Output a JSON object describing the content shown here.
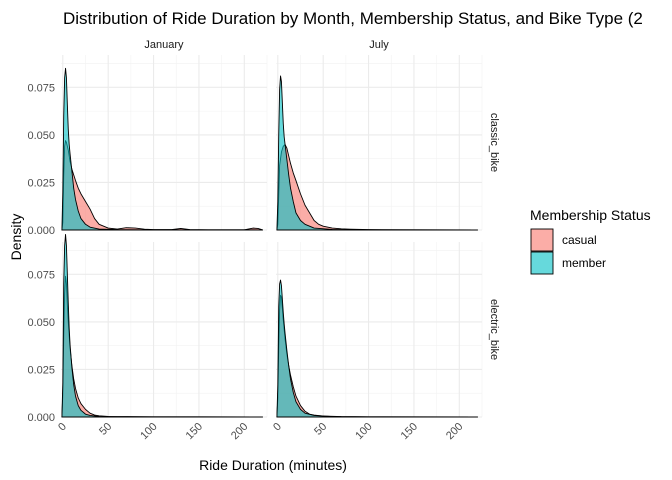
{
  "chart_data": {
    "type": "area",
    "subtype": "faceted density plot",
    "title": "Distribution of Ride Duration by Month, Membership Status, and Bike Type (2",
    "xlabel": "Ride Duration (minutes)",
    "ylabel": "Density",
    "xlim": [
      -2,
      225
    ],
    "ylim": [
      0,
      0.092
    ],
    "x_ticks": [
      0,
      50,
      100,
      150,
      200
    ],
    "y_ticks": [
      0,
      0.025,
      0.05,
      0.075
    ],
    "y_tick_labels": [
      "0.000",
      "0.025",
      "0.050",
      "0.075"
    ],
    "grid": true,
    "legend": {
      "title": "Membership Status",
      "position": "right",
      "entries": [
        {
          "name": "casual",
          "color": "#F8766D"
        },
        {
          "name": "member",
          "color": "#00BFC4"
        }
      ]
    },
    "facet_cols": [
      "January",
      "July"
    ],
    "facet_rows": [
      "classic_bike",
      "electric_bike"
    ],
    "fill_alpha": 0.6,
    "panels": [
      {
        "col": "January",
        "row": "classic_bike",
        "series": [
          {
            "name": "casual",
            "points": [
              [
                -1,
                0
              ],
              [
                0,
                0.004
              ],
              [
                1,
                0.028
              ],
              [
                2,
                0.044
              ],
              [
                3,
                0.047
              ],
              [
                4,
                0.046
              ],
              [
                6,
                0.042
              ],
              [
                8,
                0.036
              ],
              [
                10,
                0.032
              ],
              [
                12,
                0.029
              ],
              [
                14,
                0.026
              ],
              [
                17,
                0.022
              ],
              [
                20,
                0.019
              ],
              [
                25,
                0.015
              ],
              [
                30,
                0.011
              ],
              [
                35,
                0.006
              ],
              [
                40,
                0.003
              ],
              [
                45,
                0.002
              ],
              [
                50,
                0.001
              ],
              [
                60,
                0.0005
              ],
              [
                70,
                0.0012
              ],
              [
                80,
                0.001
              ],
              [
                90,
                0.0004
              ],
              [
                100,
                0.0002
              ],
              [
                120,
                0.0002
              ],
              [
                130,
                0.0008
              ],
              [
                140,
                0.0002
              ],
              [
                160,
                0.0001
              ],
              [
                200,
                0.0001
              ],
              [
                210,
                0.001
              ],
              [
                215,
                0.0008
              ],
              [
                220,
                0.0001
              ]
            ]
          },
          {
            "name": "member",
            "points": [
              [
                -1,
                0
              ],
              [
                0,
                0.02
              ],
              [
                1,
                0.06
              ],
              [
                2,
                0.08
              ],
              [
                3,
                0.085
              ],
              [
                4,
                0.08
              ],
              [
                5,
                0.066
              ],
              [
                6,
                0.053
              ],
              [
                7,
                0.045
              ],
              [
                8,
                0.04
              ],
              [
                10,
                0.031
              ],
              [
                12,
                0.022
              ],
              [
                14,
                0.016
              ],
              [
                17,
                0.01
              ],
              [
                20,
                0.006
              ],
              [
                25,
                0.003
              ],
              [
                30,
                0.0015
              ],
              [
                40,
                0.0005
              ],
              [
                60,
                0.0002
              ],
              [
                100,
                0.0001
              ],
              [
                150,
                0.0001
              ],
              [
                200,
                0.0001
              ],
              [
                220,
                5e-05
              ]
            ]
          }
        ]
      },
      {
        "col": "July",
        "row": "classic_bike",
        "series": [
          {
            "name": "casual",
            "points": [
              [
                -1,
                0
              ],
              [
                0,
                0.003
              ],
              [
                1,
                0.018
              ],
              [
                2,
                0.034
              ],
              [
                4,
                0.041
              ],
              [
                6,
                0.044
              ],
              [
                8,
                0.045
              ],
              [
                10,
                0.043
              ],
              [
                12,
                0.039
              ],
              [
                14,
                0.035
              ],
              [
                17,
                0.03
              ],
              [
                20,
                0.026
              ],
              [
                25,
                0.019
              ],
              [
                30,
                0.013
              ],
              [
                35,
                0.009
              ],
              [
                40,
                0.005
              ],
              [
                45,
                0.003
              ],
              [
                50,
                0.002
              ],
              [
                60,
                0.001
              ],
              [
                70,
                0.0006
              ],
              [
                80,
                0.0004
              ],
              [
                100,
                0.0002
              ],
              [
                150,
                0.0001
              ],
              [
                220,
                5e-05
              ]
            ]
          },
          {
            "name": "member",
            "points": [
              [
                -1,
                0
              ],
              [
                0,
                0.015
              ],
              [
                1,
                0.05
              ],
              [
                2,
                0.074
              ],
              [
                3,
                0.081
              ],
              [
                4,
                0.078
              ],
              [
                5,
                0.067
              ],
              [
                6,
                0.056
              ],
              [
                7,
                0.049
              ],
              [
                8,
                0.045
              ],
              [
                10,
                0.037
              ],
              [
                12,
                0.029
              ],
              [
                14,
                0.022
              ],
              [
                17,
                0.015
              ],
              [
                20,
                0.009
              ],
              [
                25,
                0.005
              ],
              [
                30,
                0.003
              ],
              [
                40,
                0.001
              ],
              [
                60,
                0.0003
              ],
              [
                100,
                0.0001
              ],
              [
                150,
                0.0001
              ],
              [
                220,
                5e-05
              ]
            ]
          }
        ]
      },
      {
        "col": "January",
        "row": "electric_bike",
        "series": [
          {
            "name": "casual",
            "points": [
              [
                -1,
                0
              ],
              [
                0,
                0.012
              ],
              [
                1,
                0.042
              ],
              [
                2,
                0.065
              ],
              [
                3,
                0.074
              ],
              [
                4,
                0.07
              ],
              [
                5,
                0.059
              ],
              [
                6,
                0.05
              ],
              [
                7,
                0.043
              ],
              [
                8,
                0.036
              ],
              [
                10,
                0.027
              ],
              [
                12,
                0.02
              ],
              [
                14,
                0.015
              ],
              [
                17,
                0.01
              ],
              [
                20,
                0.007
              ],
              [
                25,
                0.004
              ],
              [
                30,
                0.002
              ],
              [
                35,
                0.001
              ],
              [
                40,
                0.0006
              ],
              [
                50,
                0.0003
              ],
              [
                70,
                0.0002
              ],
              [
                100,
                0.0001
              ],
              [
                150,
                0.0001
              ],
              [
                220,
                5e-05
              ]
            ]
          },
          {
            "name": "member",
            "points": [
              [
                -1,
                0
              ],
              [
                0,
                0.018
              ],
              [
                1,
                0.07
              ],
              [
                2,
                0.09
              ],
              [
                3,
                0.096
              ],
              [
                4,
                0.09
              ],
              [
                5,
                0.075
              ],
              [
                6,
                0.06
              ],
              [
                7,
                0.047
              ],
              [
                8,
                0.038
              ],
              [
                10,
                0.026
              ],
              [
                12,
                0.017
              ],
              [
                14,
                0.011
              ],
              [
                17,
                0.006
              ],
              [
                20,
                0.0035
              ],
              [
                25,
                0.0015
              ],
              [
                30,
                0.0008
              ],
              [
                40,
                0.0003
              ],
              [
                60,
                0.0001
              ],
              [
                100,
                0.0001
              ],
              [
                220,
                5e-05
              ]
            ]
          }
        ]
      },
      {
        "col": "July",
        "row": "electric_bike",
        "series": [
          {
            "name": "casual",
            "points": [
              [
                -1,
                0
              ],
              [
                0,
                0.01
              ],
              [
                1,
                0.036
              ],
              [
                2,
                0.056
              ],
              [
                3,
                0.064
              ],
              [
                4,
                0.063
              ],
              [
                5,
                0.057
              ],
              [
                6,
                0.051
              ],
              [
                7,
                0.046
              ],
              [
                8,
                0.041
              ],
              [
                10,
                0.033
              ],
              [
                12,
                0.027
              ],
              [
                14,
                0.022
              ],
              [
                17,
                0.016
              ],
              [
                20,
                0.011
              ],
              [
                25,
                0.006
              ],
              [
                30,
                0.003
              ],
              [
                35,
                0.0015
              ],
              [
                40,
                0.001
              ],
              [
                50,
                0.0005
              ],
              [
                70,
                0.0002
              ],
              [
                100,
                0.0001
              ],
              [
                220,
                5e-05
              ]
            ]
          },
          {
            "name": "member",
            "points": [
              [
                -1,
                0
              ],
              [
                0,
                0.017
              ],
              [
                1,
                0.058
              ],
              [
                2,
                0.07
              ],
              [
                3,
                0.072
              ],
              [
                4,
                0.069
              ],
              [
                5,
                0.062
              ],
              [
                6,
                0.055
              ],
              [
                7,
                0.049
              ],
              [
                8,
                0.044
              ],
              [
                10,
                0.035
              ],
              [
                12,
                0.027
              ],
              [
                14,
                0.02
              ],
              [
                17,
                0.013
              ],
              [
                20,
                0.008
              ],
              [
                25,
                0.004
              ],
              [
                30,
                0.002
              ],
              [
                40,
                0.0008
              ],
              [
                60,
                0.0002
              ],
              [
                100,
                0.0001
              ],
              [
                220,
                5e-05
              ]
            ]
          }
        ]
      }
    ]
  }
}
